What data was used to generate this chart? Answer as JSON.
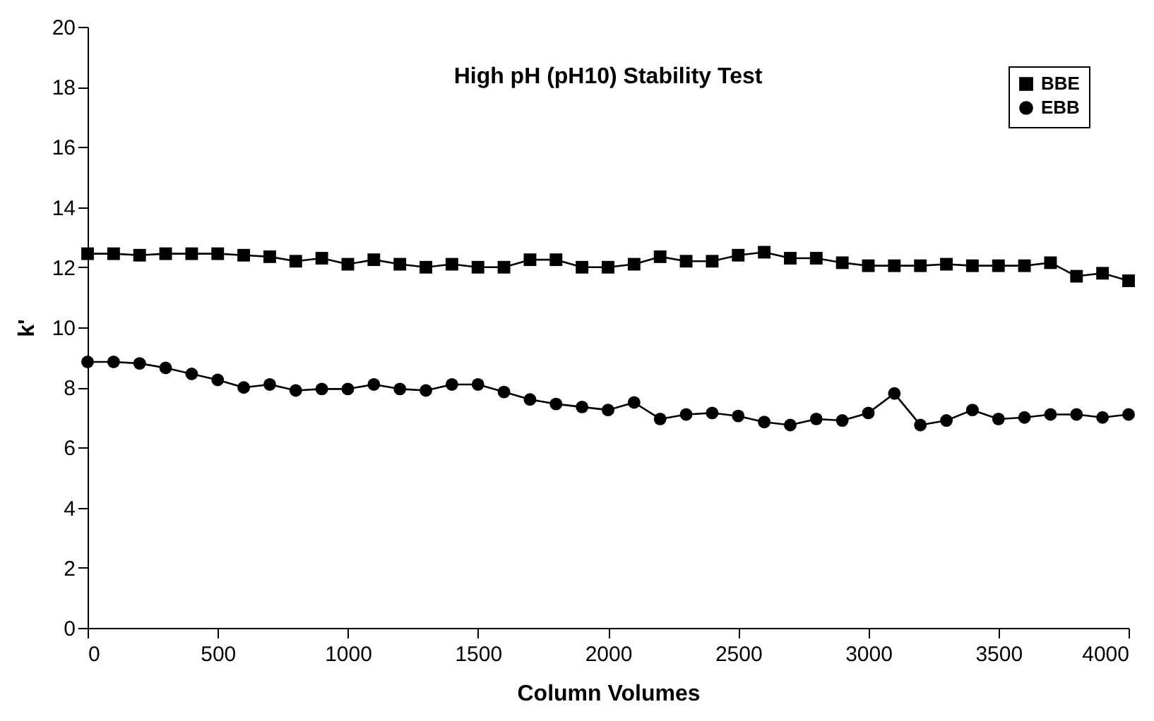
{
  "chart_data": {
    "type": "line",
    "title": "High pH (pH10) Stability Test",
    "xlabel": "Column Volumes",
    "ylabel": "k'",
    "x": [
      0,
      100,
      200,
      300,
      400,
      500,
      600,
      700,
      800,
      900,
      1000,
      1100,
      1200,
      1300,
      1400,
      1500,
      1600,
      1700,
      1800,
      1900,
      2000,
      2100,
      2200,
      2300,
      2400,
      2500,
      2600,
      2700,
      2800,
      2900,
      3000,
      3100,
      3200,
      3300,
      3400,
      3500,
      3600,
      3700,
      3800,
      3900,
      4000
    ],
    "series": [
      {
        "name": "BBE",
        "color": "#000000",
        "marker": "square",
        "values": [
          12.45,
          12.45,
          12.4,
          12.45,
          12.45,
          12.45,
          12.4,
          12.35,
          12.2,
          12.3,
          12.1,
          12.25,
          12.1,
          12.0,
          12.1,
          12.0,
          12.0,
          12.25,
          12.25,
          12.0,
          12.0,
          12.1,
          12.35,
          12.2,
          12.2,
          12.4,
          12.5,
          12.3,
          12.3,
          12.15,
          12.05,
          12.05,
          12.05,
          12.1,
          12.05,
          12.05,
          12.05,
          12.15,
          11.7,
          11.8,
          11.55
        ]
      },
      {
        "name": "EBB",
        "color": "#000000",
        "marker": "circle",
        "values": [
          8.85,
          8.85,
          8.8,
          8.65,
          8.45,
          8.25,
          8.0,
          8.1,
          7.9,
          7.95,
          7.95,
          8.1,
          7.95,
          7.9,
          8.1,
          8.1,
          7.85,
          7.6,
          7.45,
          7.35,
          7.25,
          7.5,
          6.95,
          7.1,
          7.15,
          7.05,
          6.85,
          6.75,
          6.95,
          6.9,
          7.15,
          7.8,
          6.75,
          6.9,
          7.25,
          6.95,
          7.0,
          7.1,
          7.1,
          7.0,
          7.1
        ]
      }
    ],
    "xlim": [
      0,
      4000
    ],
    "xticks": [
      0,
      500,
      1000,
      1500,
      2000,
      2500,
      3000,
      3500,
      4000
    ],
    "ylim": [
      0,
      20
    ],
    "yticks": [
      0,
      2,
      4,
      6,
      8,
      10,
      12,
      14,
      16,
      18,
      20
    ],
    "grid": false,
    "legend": "top right",
    "line_style": "solid"
  }
}
